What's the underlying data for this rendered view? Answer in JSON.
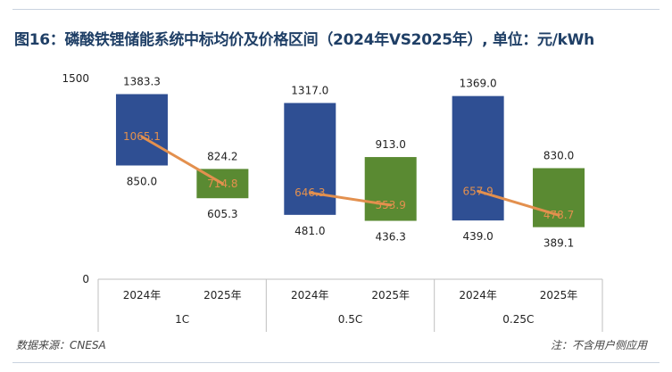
{
  "title": "图16：磷酸铁锂储能系统中标均价及价格区间（2024年VS2025年）, 单位：元/kWh",
  "source": "数据来源：CNESA",
  "note": "注：不含用户侧应用",
  "chart_data": {
    "type": "floating-bar",
    "ylim": [
      0,
      1500
    ],
    "yticks": [
      0,
      1500
    ],
    "colors": {
      "2024年": "#2f4f93",
      "2025年": "#5a8a32",
      "avg_line": "#e3904e"
    },
    "groups": [
      {
        "name": "1C",
        "bars": [
          {
            "year": "2024年",
            "low": 850.0,
            "high": 1383.3,
            "avg": 1065.1
          },
          {
            "year": "2025年",
            "low": 605.3,
            "high": 824.2,
            "avg": 714.8
          }
        ]
      },
      {
        "name": "0.5C",
        "bars": [
          {
            "year": "2024年",
            "low": 481.0,
            "high": 1317.0,
            "avg": 646.3
          },
          {
            "year": "2025年",
            "low": 436.3,
            "high": 913.0,
            "avg": 553.9
          }
        ]
      },
      {
        "name": "0.25C",
        "bars": [
          {
            "year": "2024年",
            "low": 439.0,
            "high": 1369.0,
            "avg": 657.9
          },
          {
            "year": "2025年",
            "low": 389.1,
            "high": 830.0,
            "avg": 478.7
          }
        ]
      }
    ]
  }
}
